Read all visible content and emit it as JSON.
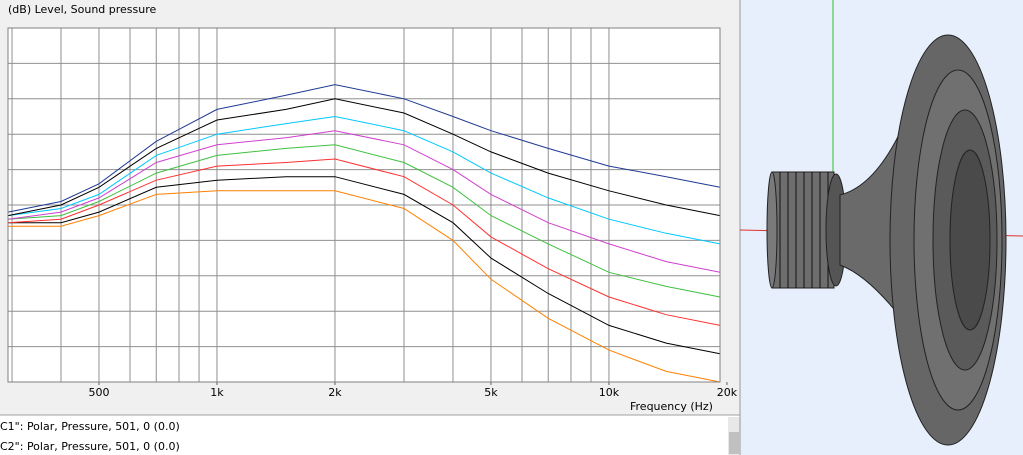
{
  "header": {
    "title": "(dB)  Level, Sound pressure"
  },
  "chart_data": {
    "type": "line",
    "xlabel": "Frequency  (Hz)",
    "log_x": true,
    "xlim": [
      293,
      19200
    ],
    "ylim": [
      0,
      10
    ],
    "xticks": [
      500,
      {
        "value": 1000,
        "label": "1k"
      },
      {
        "value": 2000,
        "label": "2k"
      },
      {
        "value": 5000,
        "label": "5k"
      },
      {
        "value": 10000,
        "label": "10k"
      },
      {
        "value": 20000,
        "label": "20k"
      }
    ],
    "xgrid": [
      300,
      400,
      500,
      600,
      700,
      800,
      900,
      1000,
      2000,
      3000,
      4000,
      5000,
      6000,
      7000,
      8000,
      9000,
      10000
    ],
    "ygrid": [
      1,
      2,
      3,
      4,
      5,
      6,
      7,
      8,
      9
    ],
    "x": [
      293,
      400,
      500,
      700,
      1000,
      1500,
      2000,
      3000,
      4000,
      5000,
      7000,
      10000,
      14000,
      19200
    ],
    "series": [
      {
        "color": "#1f3a93",
        "values": [
          4.8,
          5.1,
          5.6,
          6.8,
          7.7,
          8.1,
          8.4,
          8.0,
          7.5,
          7.1,
          6.6,
          6.1,
          5.8,
          5.5
        ]
      },
      {
        "color": "#000000",
        "values": [
          4.7,
          5.0,
          5.5,
          6.6,
          7.4,
          7.7,
          8.0,
          7.6,
          7.0,
          6.5,
          5.9,
          5.4,
          5.0,
          4.7
        ]
      },
      {
        "color": "#00c8ff",
        "values": [
          4.7,
          4.9,
          5.3,
          6.4,
          7.0,
          7.3,
          7.5,
          7.1,
          6.5,
          5.9,
          5.2,
          4.6,
          4.2,
          3.9
        ]
      },
      {
        "color": "#d040d0",
        "values": [
          4.6,
          4.8,
          5.2,
          6.2,
          6.7,
          6.9,
          7.1,
          6.7,
          6.0,
          5.3,
          4.5,
          3.9,
          3.4,
          3.1
        ]
      },
      {
        "color": "#40c040",
        "values": [
          4.6,
          4.7,
          5.1,
          5.9,
          6.4,
          6.6,
          6.7,
          6.2,
          5.5,
          4.7,
          3.9,
          3.1,
          2.7,
          2.4
        ]
      },
      {
        "color": "#ff3030",
        "values": [
          4.5,
          4.6,
          5.0,
          5.7,
          6.1,
          6.2,
          6.3,
          5.8,
          5.0,
          4.1,
          3.2,
          2.4,
          1.9,
          1.6
        ]
      },
      {
        "color": "#000000",
        "values": [
          4.5,
          4.5,
          4.8,
          5.5,
          5.7,
          5.8,
          5.8,
          5.3,
          4.5,
          3.5,
          2.5,
          1.6,
          1.1,
          0.8
        ]
      },
      {
        "color": "#ff8000",
        "values": [
          4.4,
          4.4,
          4.7,
          5.3,
          5.4,
          5.4,
          5.4,
          4.9,
          4.0,
          2.9,
          1.8,
          0.9,
          0.3,
          0
        ]
      }
    ]
  },
  "list": [
    "C1\": Polar, Pressure, 501, 0 (0.0)",
    "C2\": Polar, Pressure, 501, 0 (0.0)"
  ]
}
